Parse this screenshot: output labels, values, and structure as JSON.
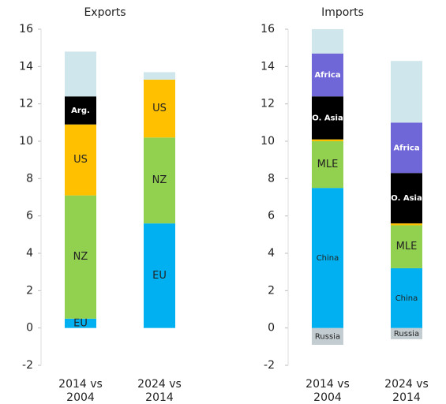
{
  "chart_data": [
    {
      "type": "bar",
      "stacked": true,
      "title": "Exports",
      "categories": [
        "2014 vs 2004",
        "2024 vs 2014"
      ],
      "ylim": [
        -2,
        16
      ],
      "yticks": [
        -2,
        0,
        2,
        4,
        6,
        8,
        10,
        12,
        14,
        16
      ],
      "series": [
        {
          "name": "EU",
          "color": "#00b0f0",
          "values": [
            0.5,
            5.6
          ]
        },
        {
          "name": "NZ",
          "color": "#92d050",
          "values": [
            6.6,
            4.6
          ]
        },
        {
          "name": "US",
          "color": "#ffc000",
          "values": [
            3.8,
            3.1
          ]
        },
        {
          "name": "Arg.",
          "color": "#000000",
          "values": [
            1.5,
            0
          ]
        },
        {
          "color": "#cfe7ec",
          "values": [
            2.4,
            0.4
          ]
        }
      ]
    },
    {
      "type": "bar",
      "stacked": true,
      "title": "Imports",
      "categories": [
        "2014 vs 2004",
        "2024 vs 2014"
      ],
      "ylim": [
        -2,
        16
      ],
      "yticks": [
        -2,
        0,
        2,
        4,
        6,
        8,
        10,
        12,
        14,
        16
      ],
      "series": [
        {
          "name": "Russia",
          "color": "#c3cdd1",
          "values": [
            -0.9,
            -0.6
          ]
        },
        {
          "name": "China",
          "color": "#00b0f0",
          "values": [
            7.5,
            3.2
          ]
        },
        {
          "name": "MLE",
          "color": "#92d050",
          "values": [
            2.5,
            2.3
          ]
        },
        {
          "color": "#ffc000",
          "values": [
            0.1,
            0.1
          ]
        },
        {
          "name": "O. Asia",
          "color": "#000000",
          "values": [
            2.3,
            2.7
          ]
        },
        {
          "name": "Africa",
          "color": "#6f66d8",
          "values": [
            2.3,
            2.7
          ]
        },
        {
          "color": "#cfe7ec",
          "values": [
            1.3,
            3.3
          ]
        }
      ]
    }
  ]
}
